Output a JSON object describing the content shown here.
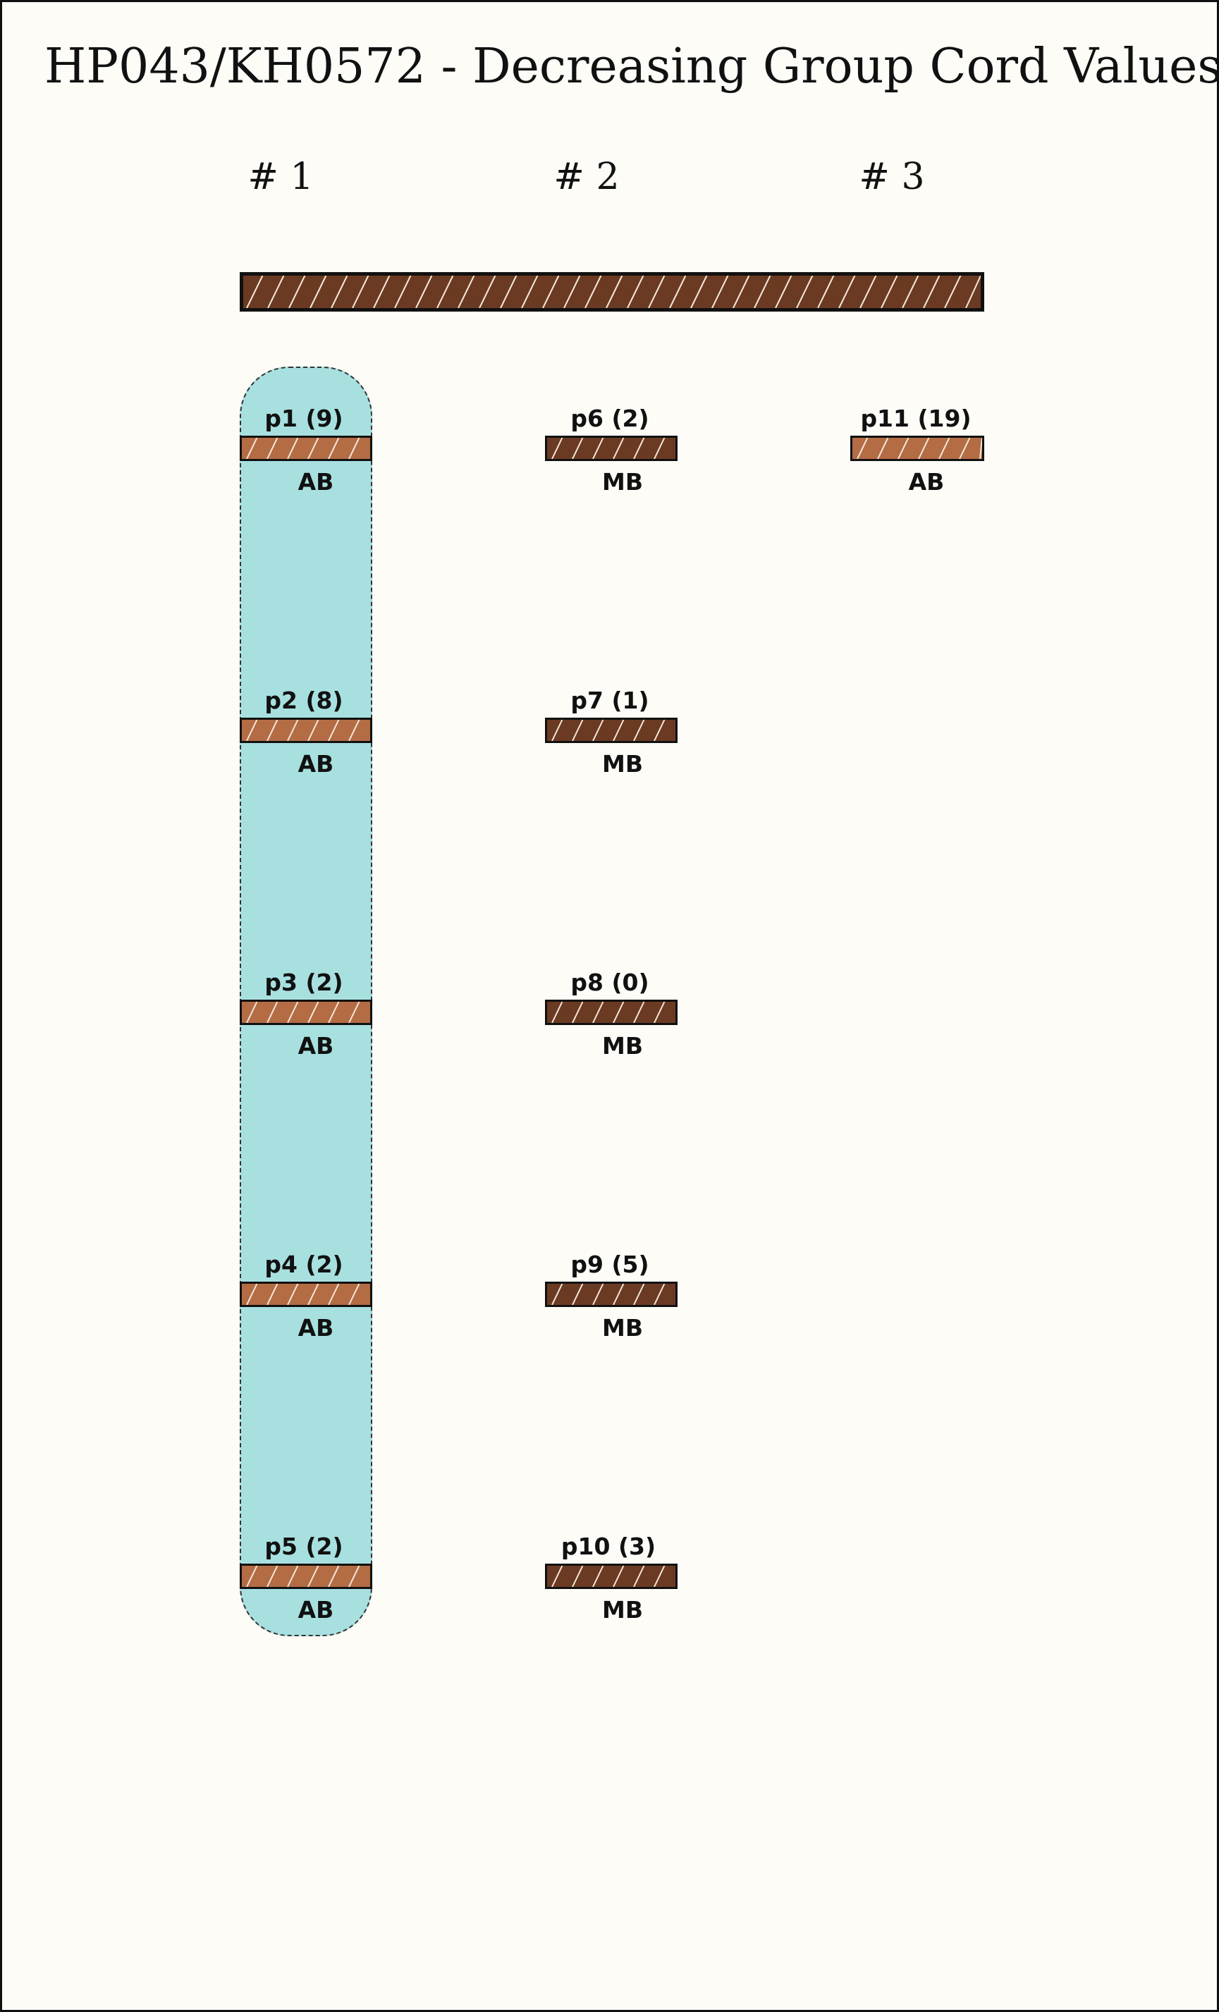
{
  "title": "HP043/KH0572 - Decreasing Group Cord Values",
  "colors": {
    "background": "#fdfcf7",
    "border": "#111111",
    "cluster_fill": "#a8e0e0",
    "primary_cord": "#6b3a22",
    "AB": "#b46c44",
    "MB": "#6b3a22"
  },
  "groups": [
    {
      "label": "# 1"
    },
    {
      "label": "# 2"
    },
    {
      "label": "# 3"
    }
  ],
  "cords": [
    {
      "label": "p1 (9)",
      "color_code": "AB"
    },
    {
      "label": "p2 (8)",
      "color_code": "AB"
    },
    {
      "label": "p3 (2)",
      "color_code": "AB"
    },
    {
      "label": "p4 (2)",
      "color_code": "AB"
    },
    {
      "label": "p5 (2)",
      "color_code": "AB"
    },
    {
      "label": "p6 (2)",
      "color_code": "MB"
    },
    {
      "label": "p7 (1)",
      "color_code": "MB"
    },
    {
      "label": "p8 (0)",
      "color_code": "MB"
    },
    {
      "label": "p9 (5)",
      "color_code": "MB"
    },
    {
      "label": "p10 (3)",
      "color_code": "MB"
    },
    {
      "label": "p11 (19)",
      "color_code": "AB"
    }
  ]
}
